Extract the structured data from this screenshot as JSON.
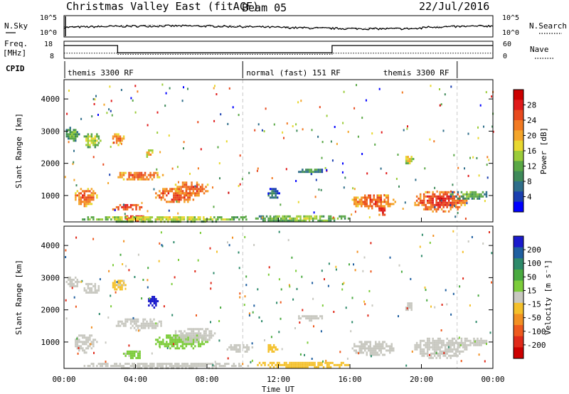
{
  "header": {
    "title": "Christmas Valley East (fitACF)",
    "beam": "Beam 05",
    "date": "22/Jul/2016"
  },
  "left_labels": {
    "nsky": "N.Sky",
    "freq": "Freq.",
    "mhz": "[MHz]",
    "cpid": "CPID"
  },
  "right_labels": {
    "nsearch": "N.Search",
    "nave": "Nave"
  },
  "nsky_ticks": [
    "10^5",
    "10^0"
  ],
  "nsearch_ticks": [
    "10^5",
    "10^0"
  ],
  "freq_ticks": [
    "18",
    "8"
  ],
  "nave_ticks": [
    "60",
    "0"
  ],
  "cpid_segments": [
    {
      "label": "themis 3300 RF",
      "start": 0,
      "end": 10
    },
    {
      "label": "normal (fast) 151 RF",
      "start": 10,
      "end": 22
    },
    {
      "label": "themis 3300 RF",
      "start": 22,
      "end": 24
    }
  ],
  "chart_data": [
    {
      "type": "line",
      "name": "noise-and-frequency",
      "x_range_hours": [
        0,
        24
      ],
      "freq_ylim": [
        8,
        18
      ],
      "freq_steps": [
        {
          "start": 0,
          "end": 3,
          "value": 15.5
        },
        {
          "start": 3,
          "end": 15,
          "value": 11.2
        },
        {
          "start": 15,
          "end": 24,
          "value": 15.5
        }
      ],
      "nave_steps": [
        {
          "start": 0,
          "end": 3,
          "value": 18
        },
        {
          "start": 3,
          "end": 15,
          "value": 14
        },
        {
          "start": 15,
          "end": 24,
          "value": 18
        }
      ]
    },
    {
      "type": "heatmap",
      "name": "power",
      "ylabel": "Slant Range [km]",
      "ylim": [
        180,
        4600
      ],
      "yticks": [
        1000,
        2000,
        3000,
        4000
      ],
      "colorbar": {
        "label": "Power [dB]",
        "range": [
          0,
          32
        ],
        "ticks": [
          4,
          8,
          12,
          16,
          20,
          24,
          28
        ],
        "colors": [
          "#0000ff",
          "#1a3fb0",
          "#2f6e8a",
          "#3f8a5a",
          "#5aa846",
          "#9bcc3a",
          "#e8d830",
          "#f4a52a",
          "#f27a22",
          "#e84a1e",
          "#e01a1a",
          "#cc0000"
        ]
      },
      "regions": [
        {
          "t0": 0.0,
          "t1": 0.8,
          "r0": 2700,
          "r1": 3200,
          "v": 10
        },
        {
          "t0": 0.5,
          "t1": 1.8,
          "r0": 700,
          "r1": 1300,
          "v": 22
        },
        {
          "t0": 1.0,
          "t1": 2.0,
          "r0": 2500,
          "r1": 3000,
          "v": 14
        },
        {
          "t0": 2.6,
          "t1": 3.4,
          "r0": 2600,
          "r1": 3000,
          "v": 20
        },
        {
          "t0": 2.5,
          "t1": 4.5,
          "r0": 550,
          "r1": 800,
          "v": 24
        },
        {
          "t0": 2.8,
          "t1": 5.5,
          "r0": 1500,
          "r1": 1800,
          "v": 22
        },
        {
          "t0": 3.3,
          "t1": 4.5,
          "r0": 200,
          "r1": 450,
          "v": 26
        },
        {
          "t0": 4.5,
          "t1": 5.0,
          "r0": 2200,
          "r1": 2500,
          "v": 18
        },
        {
          "t0": 5.0,
          "t1": 7.5,
          "r0": 800,
          "r1": 1300,
          "v": 24
        },
        {
          "t0": 6.0,
          "t1": 8.2,
          "r0": 1000,
          "r1": 1500,
          "v": 22
        },
        {
          "t0": 0.8,
          "t1": 10.5,
          "r0": 200,
          "r1": 420,
          "v": 14
        },
        {
          "t0": 10.5,
          "t1": 16.0,
          "r0": 200,
          "r1": 450,
          "v": 12
        },
        {
          "t0": 11.3,
          "t1": 12.0,
          "r0": 900,
          "r1": 1300,
          "v": 6
        },
        {
          "t0": 13.0,
          "t1": 14.5,
          "r0": 1700,
          "r1": 1900,
          "v": 8
        },
        {
          "t0": 16.0,
          "t1": 18.5,
          "r0": 600,
          "r1": 1100,
          "v": 22
        },
        {
          "t0": 17.5,
          "t1": 18.0,
          "r0": 400,
          "r1": 700,
          "v": 26
        },
        {
          "t0": 19.0,
          "t1": 19.5,
          "r0": 2000,
          "r1": 2300,
          "v": 16
        },
        {
          "t0": 19.5,
          "t1": 22.5,
          "r0": 500,
          "r1": 1200,
          "v": 24
        },
        {
          "t0": 21.5,
          "t1": 23.8,
          "r0": 900,
          "r1": 1200,
          "v": 10
        }
      ]
    },
    {
      "type": "heatmap",
      "name": "velocity",
      "ylabel": "Slant Range [km]",
      "ylim": [
        180,
        4600
      ],
      "yticks": [
        1000,
        2000,
        3000,
        4000
      ],
      "colorbar": {
        "label": "Velocity [m s^-1]",
        "range": [
          -250,
          250
        ],
        "ticks": [
          200,
          100,
          50,
          15,
          -15,
          -50,
          -100,
          -200
        ],
        "colors": [
          "#1a1acc",
          "#1f5fa0",
          "#2e8a6a",
          "#4aaa40",
          "#7ccc3a",
          "#c8c8c0",
          "#f4c02a",
          "#f29022",
          "#ee5a1e",
          "#e02a1a",
          "#cc0000"
        ]
      },
      "regions": [
        {
          "t0": 0.0,
          "t1": 0.8,
          "r0": 2700,
          "r1": 3100,
          "v": 0
        },
        {
          "t0": 0.5,
          "t1": 1.8,
          "r0": 700,
          "r1": 1300,
          "v": 0
        },
        {
          "t0": 1.0,
          "t1": 2.0,
          "r0": 2500,
          "r1": 2900,
          "v": 0
        },
        {
          "t0": 2.6,
          "t1": 3.4,
          "r0": 2600,
          "r1": 3000,
          "v": -30
        },
        {
          "t0": 3.2,
          "t1": 4.5,
          "r0": 500,
          "r1": 800,
          "v": 35
        },
        {
          "t0": 2.8,
          "t1": 5.5,
          "r0": 1400,
          "r1": 1800,
          "v": 0
        },
        {
          "t0": 4.6,
          "t1": 5.2,
          "r0": 2050,
          "r1": 2500,
          "v": 220
        },
        {
          "t0": 5.0,
          "t1": 8.0,
          "r0": 800,
          "r1": 1300,
          "v": 40
        },
        {
          "t0": 6.0,
          "t1": 8.5,
          "r0": 1000,
          "r1": 1500,
          "v": 0
        },
        {
          "t0": 9.0,
          "t1": 10.5,
          "r0": 700,
          "r1": 1000,
          "v": 0
        },
        {
          "t0": 0.8,
          "t1": 10.5,
          "r0": 200,
          "r1": 420,
          "v": 0
        },
        {
          "t0": 10.5,
          "t1": 16.0,
          "r0": 200,
          "r1": 450,
          "v": -40
        },
        {
          "t0": 11.2,
          "t1": 12.0,
          "r0": 700,
          "r1": 1000,
          "v": -60
        },
        {
          "t0": 13.0,
          "t1": 14.5,
          "r0": 1700,
          "r1": 1900,
          "v": 0
        },
        {
          "t0": 16.0,
          "t1": 18.5,
          "r0": 600,
          "r1": 1100,
          "v": 0
        },
        {
          "t0": 19.0,
          "t1": 19.5,
          "r0": 2000,
          "r1": 2300,
          "v": 0
        },
        {
          "t0": 19.5,
          "t1": 22.5,
          "r0": 500,
          "r1": 1200,
          "v": 0
        },
        {
          "t0": 21.5,
          "t1": 23.8,
          "r0": 900,
          "r1": 1200,
          "v": 0
        }
      ]
    }
  ],
  "x_axis": {
    "label": "Time UT",
    "ticks": [
      "00:00",
      "04:00",
      "08:00",
      "12:00",
      "16:00",
      "20:00",
      "00:00"
    ]
  }
}
